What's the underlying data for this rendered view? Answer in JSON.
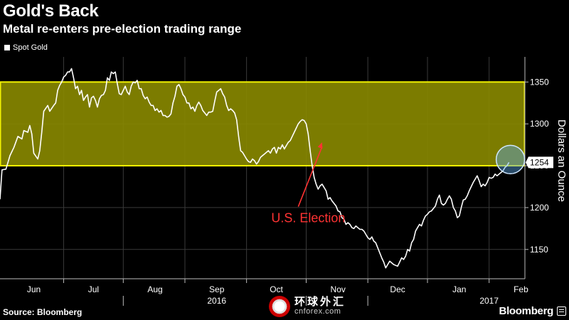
{
  "header": {
    "title": "Gold's Back",
    "subtitle": "Metal re-enters pre-election trading range"
  },
  "footer": {
    "source": "Source: Bloomberg",
    "brand": "Bloomberg",
    "watermark_cn": "环球外汇",
    "watermark_en": "cnforex.com"
  },
  "colors": {
    "background": "#000000",
    "line": "#ffffff",
    "band_fill": "#8a8a00",
    "band_stroke": "#f2f200",
    "annotation": "#ff3333",
    "highlight": "#5aa6e6"
  },
  "chart_data": {
    "type": "line",
    "title": "Gold's Back",
    "subtitle": "Metal re-enters pre-election trading range",
    "ylabel": "Dollars an Ounce",
    "ylim": [
      1115,
      1380
    ],
    "yticks": [
      1150,
      1200,
      1250,
      1300,
      1350
    ],
    "x_domain": [
      0,
      264
    ],
    "months": [
      {
        "label": "Jun",
        "pos": 17
      },
      {
        "label": "Jul",
        "pos": 47
      },
      {
        "label": "Aug",
        "pos": 78
      },
      {
        "label": "Sep",
        "pos": 109
      },
      {
        "label": "Oct",
        "pos": 139
      },
      {
        "label": "Nov",
        "pos": 170
      },
      {
        "label": "Dec",
        "pos": 200
      },
      {
        "label": "Jan",
        "pos": 231
      },
      {
        "label": "Feb",
        "pos": 262
      }
    ],
    "month_boundaries": [
      32,
      62,
      93,
      124,
      154,
      185,
      215,
      246
    ],
    "years": [
      {
        "label": "2016",
        "pos": 109
      },
      {
        "label": "2017",
        "pos": 246
      }
    ],
    "year_separators": [
      62,
      154,
      185
    ],
    "band": {
      "low": 1250,
      "high": 1350
    },
    "legend": [
      {
        "label": "Spot Gold"
      }
    ],
    "annotation": {
      "text": "U.S. Election",
      "x": 162,
      "y": 1278,
      "text_x": 140,
      "text_y": 1191
    },
    "last_value": {
      "label": "1254",
      "value": 1254
    },
    "series": [
      {
        "name": "Spot Gold",
        "points": [
          [
            0,
            1210
          ],
          [
            1,
            1245
          ],
          [
            3,
            1246
          ],
          [
            5,
            1262
          ],
          [
            7,
            1272
          ],
          [
            9,
            1285
          ],
          [
            11,
            1282
          ],
          [
            12,
            1292
          ],
          [
            14,
            1290
          ],
          [
            15,
            1298
          ],
          [
            16,
            1288
          ],
          [
            17,
            1265
          ],
          [
            19,
            1258
          ],
          [
            20,
            1268
          ],
          [
            21,
            1290
          ],
          [
            22,
            1315
          ],
          [
            24,
            1322
          ],
          [
            25,
            1315
          ],
          [
            27,
            1322
          ],
          [
            28,
            1325
          ],
          [
            29,
            1340
          ],
          [
            30,
            1346
          ],
          [
            31,
            1350
          ],
          [
            32,
            1356
          ],
          [
            33,
            1358
          ],
          [
            34,
            1362
          ],
          [
            35,
            1362
          ],
          [
            36,
            1366
          ],
          [
            37,
            1355
          ],
          [
            38,
            1342
          ],
          [
            39,
            1345
          ],
          [
            40,
            1335
          ],
          [
            41,
            1340
          ],
          [
            42,
            1328
          ],
          [
            43,
            1332
          ],
          [
            44,
            1335
          ],
          [
            45,
            1320
          ],
          [
            46,
            1331
          ],
          [
            47,
            1333
          ],
          [
            48,
            1328
          ],
          [
            49,
            1320
          ],
          [
            50,
            1330
          ],
          [
            51,
            1334
          ],
          [
            52,
            1335
          ],
          [
            53,
            1340
          ],
          [
            54,
            1355
          ],
          [
            55,
            1352
          ],
          [
            56,
            1362
          ],
          [
            57,
            1360
          ],
          [
            58,
            1362
          ],
          [
            59,
            1348
          ],
          [
            60,
            1336
          ],
          [
            61,
            1335
          ],
          [
            62,
            1340
          ],
          [
            63,
            1345
          ],
          [
            64,
            1338
          ],
          [
            65,
            1335
          ],
          [
            66,
            1345
          ],
          [
            67,
            1350
          ],
          [
            68,
            1349
          ],
          [
            69,
            1352
          ],
          [
            70,
            1342
          ],
          [
            71,
            1342
          ],
          [
            72,
            1334
          ],
          [
            73,
            1330
          ],
          [
            74,
            1332
          ],
          [
            75,
            1326
          ],
          [
            76,
            1322
          ],
          [
            77,
            1322
          ],
          [
            78,
            1316
          ],
          [
            79,
            1318
          ],
          [
            80,
            1314
          ],
          [
            81,
            1316
          ],
          [
            82,
            1310
          ],
          [
            83,
            1310
          ],
          [
            84,
            1308
          ],
          [
            85,
            1309
          ],
          [
            86,
            1312
          ],
          [
            87,
            1325
          ],
          [
            88,
            1333
          ],
          [
            89,
            1345
          ],
          [
            90,
            1347
          ],
          [
            91,
            1342
          ],
          [
            92,
            1335
          ],
          [
            93,
            1332
          ],
          [
            94,
            1325
          ],
          [
            95,
            1325
          ],
          [
            96,
            1318
          ],
          [
            97,
            1320
          ],
          [
            98,
            1315
          ],
          [
            99,
            1322
          ],
          [
            100,
            1326
          ],
          [
            101,
            1322
          ],
          [
            102,
            1316
          ],
          [
            103,
            1313
          ],
          [
            104,
            1310
          ],
          [
            105,
            1314
          ],
          [
            106,
            1314
          ],
          [
            107,
            1315
          ],
          [
            108,
            1327
          ],
          [
            109,
            1338
          ],
          [
            110,
            1340
          ],
          [
            111,
            1342
          ],
          [
            112,
            1336
          ],
          [
            113,
            1332
          ],
          [
            114,
            1322
          ],
          [
            115,
            1316
          ],
          [
            116,
            1318
          ],
          [
            117,
            1316
          ],
          [
            118,
            1313
          ],
          [
            119,
            1305
          ],
          [
            120,
            1285
          ],
          [
            121,
            1268
          ],
          [
            122,
            1266
          ],
          [
            123,
            1262
          ],
          [
            124,
            1258
          ],
          [
            125,
            1255
          ],
          [
            126,
            1254
          ],
          [
            127,
            1258
          ],
          [
            128,
            1256
          ],
          [
            129,
            1252
          ],
          [
            130,
            1255
          ],
          [
            131,
            1260
          ],
          [
            132,
            1262
          ],
          [
            133,
            1264
          ],
          [
            134,
            1266
          ],
          [
            135,
            1268
          ],
          [
            136,
            1265
          ],
          [
            137,
            1270
          ],
          [
            138,
            1272
          ],
          [
            139,
            1265
          ],
          [
            140,
            1272
          ],
          [
            141,
            1270
          ],
          [
            142,
            1275
          ],
          [
            143,
            1270
          ],
          [
            144,
            1274
          ],
          [
            145,
            1278
          ],
          [
            146,
            1280
          ],
          [
            147,
            1285
          ],
          [
            148,
            1290
          ],
          [
            149,
            1295
          ],
          [
            150,
            1300
          ],
          [
            151,
            1303
          ],
          [
            152,
            1305
          ],
          [
            153,
            1304
          ],
          [
            154,
            1300
          ],
          [
            155,
            1288
          ],
          [
            156,
            1268
          ],
          [
            157,
            1250
          ],
          [
            158,
            1236
          ],
          [
            159,
            1228
          ],
          [
            160,
            1222
          ],
          [
            161,
            1226
          ],
          [
            162,
            1228
          ],
          [
            163,
            1224
          ],
          [
            164,
            1220
          ],
          [
            165,
            1210
          ],
          [
            166,
            1212
          ],
          [
            167,
            1208
          ],
          [
            168,
            1205
          ],
          [
            169,
            1202
          ],
          [
            170,
            1196
          ],
          [
            171,
            1195
          ],
          [
            172,
            1188
          ],
          [
            173,
            1186
          ],
          [
            174,
            1180
          ],
          [
            175,
            1182
          ],
          [
            176,
            1180
          ],
          [
            177,
            1176
          ],
          [
            178,
            1175
          ],
          [
            179,
            1178
          ],
          [
            180,
            1176
          ],
          [
            181,
            1174
          ],
          [
            182,
            1174
          ],
          [
            183,
            1172
          ],
          [
            184,
            1168
          ],
          [
            185,
            1164
          ],
          [
            186,
            1162
          ],
          [
            187,
            1165
          ],
          [
            188,
            1160
          ],
          [
            189,
            1158
          ],
          [
            190,
            1152
          ],
          [
            191,
            1146
          ],
          [
            192,
            1140
          ],
          [
            193,
            1135
          ],
          [
            194,
            1128
          ],
          [
            195,
            1132
          ],
          [
            196,
            1136
          ],
          [
            197,
            1134
          ],
          [
            198,
            1132
          ],
          [
            199,
            1131
          ],
          [
            200,
            1130
          ],
          [
            201,
            1135
          ],
          [
            202,
            1140
          ],
          [
            203,
            1138
          ],
          [
            204,
            1142
          ],
          [
            205,
            1150
          ],
          [
            206,
            1148
          ],
          [
            207,
            1158
          ],
          [
            208,
            1162
          ],
          [
            209,
            1172
          ],
          [
            210,
            1176
          ],
          [
            211,
            1180
          ],
          [
            212,
            1178
          ],
          [
            213,
            1185
          ],
          [
            214,
            1190
          ],
          [
            215,
            1192
          ],
          [
            216,
            1195
          ],
          [
            217,
            1196
          ],
          [
            218,
            1199
          ],
          [
            219,
            1202
          ],
          [
            220,
            1210
          ],
          [
            221,
            1215
          ],
          [
            222,
            1205
          ],
          [
            223,
            1203
          ],
          [
            224,
            1205
          ],
          [
            225,
            1210
          ],
          [
            226,
            1214
          ],
          [
            227,
            1210
          ],
          [
            228,
            1200
          ],
          [
            229,
            1196
          ],
          [
            230,
            1188
          ],
          [
            231,
            1190
          ],
          [
            232,
            1200
          ],
          [
            233,
            1209
          ],
          [
            234,
            1210
          ],
          [
            235,
            1214
          ],
          [
            236,
            1220
          ],
          [
            237,
            1225
          ],
          [
            238,
            1230
          ],
          [
            239,
            1234
          ],
          [
            240,
            1238
          ],
          [
            241,
            1232
          ],
          [
            242,
            1225
          ],
          [
            243,
            1228
          ],
          [
            244,
            1226
          ],
          [
            245,
            1230
          ],
          [
            246,
            1236
          ],
          [
            247,
            1235
          ],
          [
            248,
            1236
          ],
          [
            249,
            1240
          ],
          [
            250,
            1238
          ],
          [
            251,
            1240
          ],
          [
            252,
            1242
          ],
          [
            253,
            1244
          ],
          [
            254,
            1248
          ],
          [
            255,
            1250
          ],
          [
            256,
            1254
          ]
        ]
      }
    ]
  }
}
